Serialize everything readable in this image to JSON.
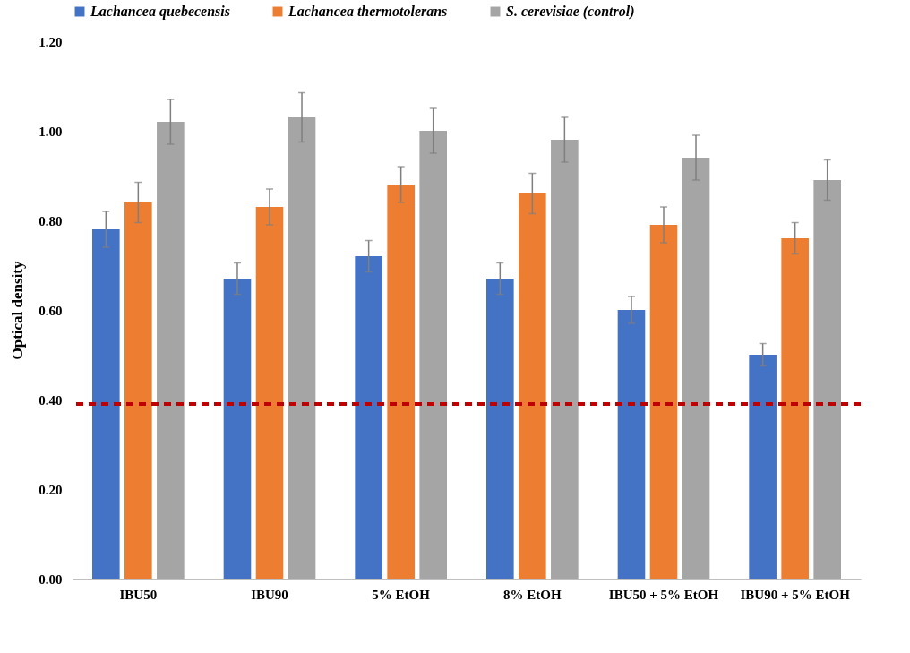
{
  "chart_data": {
    "type": "bar",
    "ylabel": "Optical density",
    "categories": [
      "IBU50",
      "IBU90",
      "5% EtOH",
      "8% EtOH",
      "IBU50 + 5% EtOH",
      "IBU90 + 5% EtOH"
    ],
    "series": [
      {
        "name": "Lachancea quebecensis",
        "color": "#4472c4",
        "values": [
          0.78,
          0.67,
          0.72,
          0.67,
          0.6,
          0.5
        ],
        "errors": [
          0.04,
          0.035,
          0.035,
          0.035,
          0.03,
          0.025
        ]
      },
      {
        "name": "Lachancea thermotolerans",
        "color": "#ed7d31",
        "values": [
          0.84,
          0.83,
          0.88,
          0.86,
          0.79,
          0.76
        ],
        "errors": [
          0.045,
          0.04,
          0.04,
          0.045,
          0.04,
          0.035
        ]
      },
      {
        "name": "S. cerevisiae (control)",
        "color": "#a5a5a5",
        "values": [
          1.02,
          1.03,
          1.0,
          0.98,
          0.94,
          0.89
        ],
        "errors": [
          0.05,
          0.055,
          0.05,
          0.05,
          0.05,
          0.045
        ]
      }
    ],
    "ylim": [
      0,
      1.2
    ],
    "yticks": [
      {
        "value": 0,
        "label": "0.00"
      },
      {
        "value": 0.2,
        "label": "0.20"
      },
      {
        "value": 0.4,
        "label": "0.40"
      },
      {
        "value": 0.6,
        "label": "0.60"
      },
      {
        "value": 0.8,
        "label": "0.80"
      },
      {
        "value": 1.0,
        "label": "1.00"
      },
      {
        "value": 1.2,
        "label": "1.20"
      }
    ],
    "grid": false,
    "legend": "top",
    "ref_lines": [
      {
        "axis": "y",
        "value": 0.39,
        "color": "#c00000",
        "line_style": "dashed"
      }
    ]
  }
}
